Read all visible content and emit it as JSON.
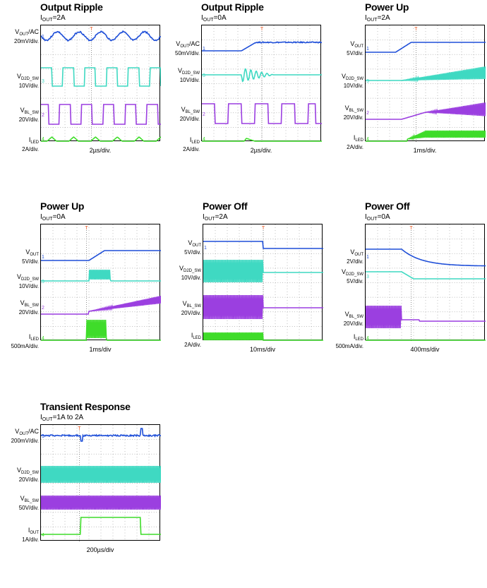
{
  "chart_data": [
    {
      "type": "line",
      "title": "Output Ripple",
      "condition": {
        "var": "I",
        "sub": "OUT",
        "value": "=2A"
      },
      "xlabel": "2µs/div.",
      "channels": [
        {
          "name": "V",
          "sub": "OUT",
          "suffix": "/AC",
          "scale": "20mV/div.",
          "color": "#1f4fd8",
          "marker": "1"
        },
        {
          "name": "V",
          "sub": "D2D_SW",
          "suffix": "",
          "scale": "10V/div.",
          "color": "#3fd9c2",
          "marker": "3"
        },
        {
          "name": "V",
          "sub": "BL_SW",
          "suffix": "",
          "scale": "20V/div.",
          "color": "#9b3fe0",
          "marker": "2"
        },
        {
          "name": "I",
          "sub": "LED",
          "suffix": "",
          "scale": "2A/div.",
          "color": "#3fdc2a",
          "marker": "4"
        }
      ]
    },
    {
      "type": "line",
      "title": "Output Ripple",
      "condition": {
        "var": "I",
        "sub": "OUT",
        "value": "=0A"
      },
      "xlabel": "2µs/div.",
      "channels": [
        {
          "name": "V",
          "sub": "OUT",
          "suffix": "/AC",
          "scale": "50mV/div.",
          "color": "#1f4fd8",
          "marker": "1"
        },
        {
          "name": "V",
          "sub": "D2D_SW",
          "suffix": "",
          "scale": "10V/div.",
          "color": "#3fd9c2",
          "marker": "3"
        },
        {
          "name": "V",
          "sub": "BL_SW",
          "suffix": "",
          "scale": "20V/div.",
          "color": "#9b3fe0",
          "marker": "2"
        },
        {
          "name": "I",
          "sub": "LED",
          "suffix": "",
          "scale": "2A/div.",
          "color": "#3fdc2a",
          "marker": "4"
        }
      ]
    },
    {
      "type": "line",
      "title": "Power Up",
      "condition": {
        "var": "I",
        "sub": "OUT",
        "value": "=2A"
      },
      "xlabel": "1ms/div.",
      "channels": [
        {
          "name": "V",
          "sub": "OUT",
          "suffix": "",
          "scale": "5V/div.",
          "color": "#1f4fd8",
          "marker": "1"
        },
        {
          "name": "V",
          "sub": "D2D_SW",
          "suffix": "",
          "scale": "10V/div.",
          "color": "#3fd9c2",
          "marker": "3"
        },
        {
          "name": "V",
          "sub": "BL_SW",
          "suffix": "",
          "scale": "20V/div.",
          "color": "#9b3fe0",
          "marker": "2"
        },
        {
          "name": "I",
          "sub": "LED",
          "suffix": "",
          "scale": "2A/div.",
          "color": "#3fdc2a",
          "marker": "4"
        }
      ]
    },
    {
      "type": "line",
      "title": "Power Up",
      "condition": {
        "var": "I",
        "sub": "OUT",
        "value": "=0A"
      },
      "xlabel": "1ms/div",
      "channels": [
        {
          "name": "V",
          "sub": "OUT",
          "suffix": "",
          "scale": "5V/div.",
          "color": "#1f4fd8",
          "marker": "1"
        },
        {
          "name": "V",
          "sub": "D2D_SW",
          "suffix": "",
          "scale": "10V/div.",
          "color": "#3fd9c2",
          "marker": "3"
        },
        {
          "name": "V",
          "sub": "BL_SW",
          "suffix": "",
          "scale": "20V/div.",
          "color": "#9b3fe0",
          "marker": "2"
        },
        {
          "name": "I",
          "sub": "LED",
          "suffix": "",
          "scale": "500mA/div.",
          "color": "#3fdc2a",
          "marker": "4"
        }
      ]
    },
    {
      "type": "line",
      "title": "Power Off",
      "condition": {
        "var": "I",
        "sub": "OUT",
        "value": "=2A"
      },
      "xlabel": "10ms/div",
      "channels": [
        {
          "name": "V",
          "sub": "OUT",
          "suffix": "",
          "scale": "5V/div.",
          "color": "#1f4fd8",
          "marker": "1"
        },
        {
          "name": "V",
          "sub": "D2D_SW",
          "suffix": "",
          "scale": "10V/div.",
          "color": "#3fd9c2",
          "marker": "3"
        },
        {
          "name": "V",
          "sub": "BL_SW",
          "suffix": "",
          "scale": "20V/div.",
          "color": "#9b3fe0",
          "marker": "2"
        },
        {
          "name": "I",
          "sub": "LED",
          "suffix": "",
          "scale": "2A/div.",
          "color": "#3fdc2a",
          "marker": "4"
        }
      ]
    },
    {
      "type": "line",
      "title": "Power Off",
      "condition": {
        "var": "I",
        "sub": "OUT",
        "value": "=0A"
      },
      "xlabel": "400ms/div",
      "channels": [
        {
          "name": "V",
          "sub": "OUT",
          "suffix": "",
          "scale": "2V/div.",
          "color": "#1f4fd8",
          "marker": "1"
        },
        {
          "name": "V",
          "sub": "D2D_SW",
          "suffix": "",
          "scale": "5V/div.",
          "color": "#3fd9c2",
          "marker": "3"
        },
        {
          "name": "V",
          "sub": "BL_SW",
          "suffix": "",
          "scale": "20V/div.",
          "color": "#9b3fe0",
          "marker": "2"
        },
        {
          "name": "I",
          "sub": "LED",
          "suffix": "",
          "scale": "500mA/div.",
          "color": "#3fdc2a",
          "marker": "4"
        }
      ]
    },
    {
      "type": "line",
      "title": "Transient Response",
      "condition": {
        "var": "I",
        "sub": "OUT",
        "value": "=1A to 2A"
      },
      "xlabel": "200µs/div",
      "channels": [
        {
          "name": "V",
          "sub": "OUT",
          "suffix": "/AC",
          "scale": "200mV/div.",
          "color": "#1f4fd8",
          "marker": "1"
        },
        {
          "name": "V",
          "sub": "D2D_SW",
          "suffix": "",
          "scale": "20V/div.",
          "color": "#3fd9c2",
          "marker": "3"
        },
        {
          "name": "V",
          "sub": "BL_SW",
          "suffix": "",
          "scale": "50V/div.",
          "color": "#9b3fe0",
          "marker": "2"
        },
        {
          "name": "I",
          "sub": "OUT",
          "suffix": "",
          "scale": "1A/div.",
          "color": "#3fdc2a",
          "marker": "4"
        }
      ]
    }
  ]
}
